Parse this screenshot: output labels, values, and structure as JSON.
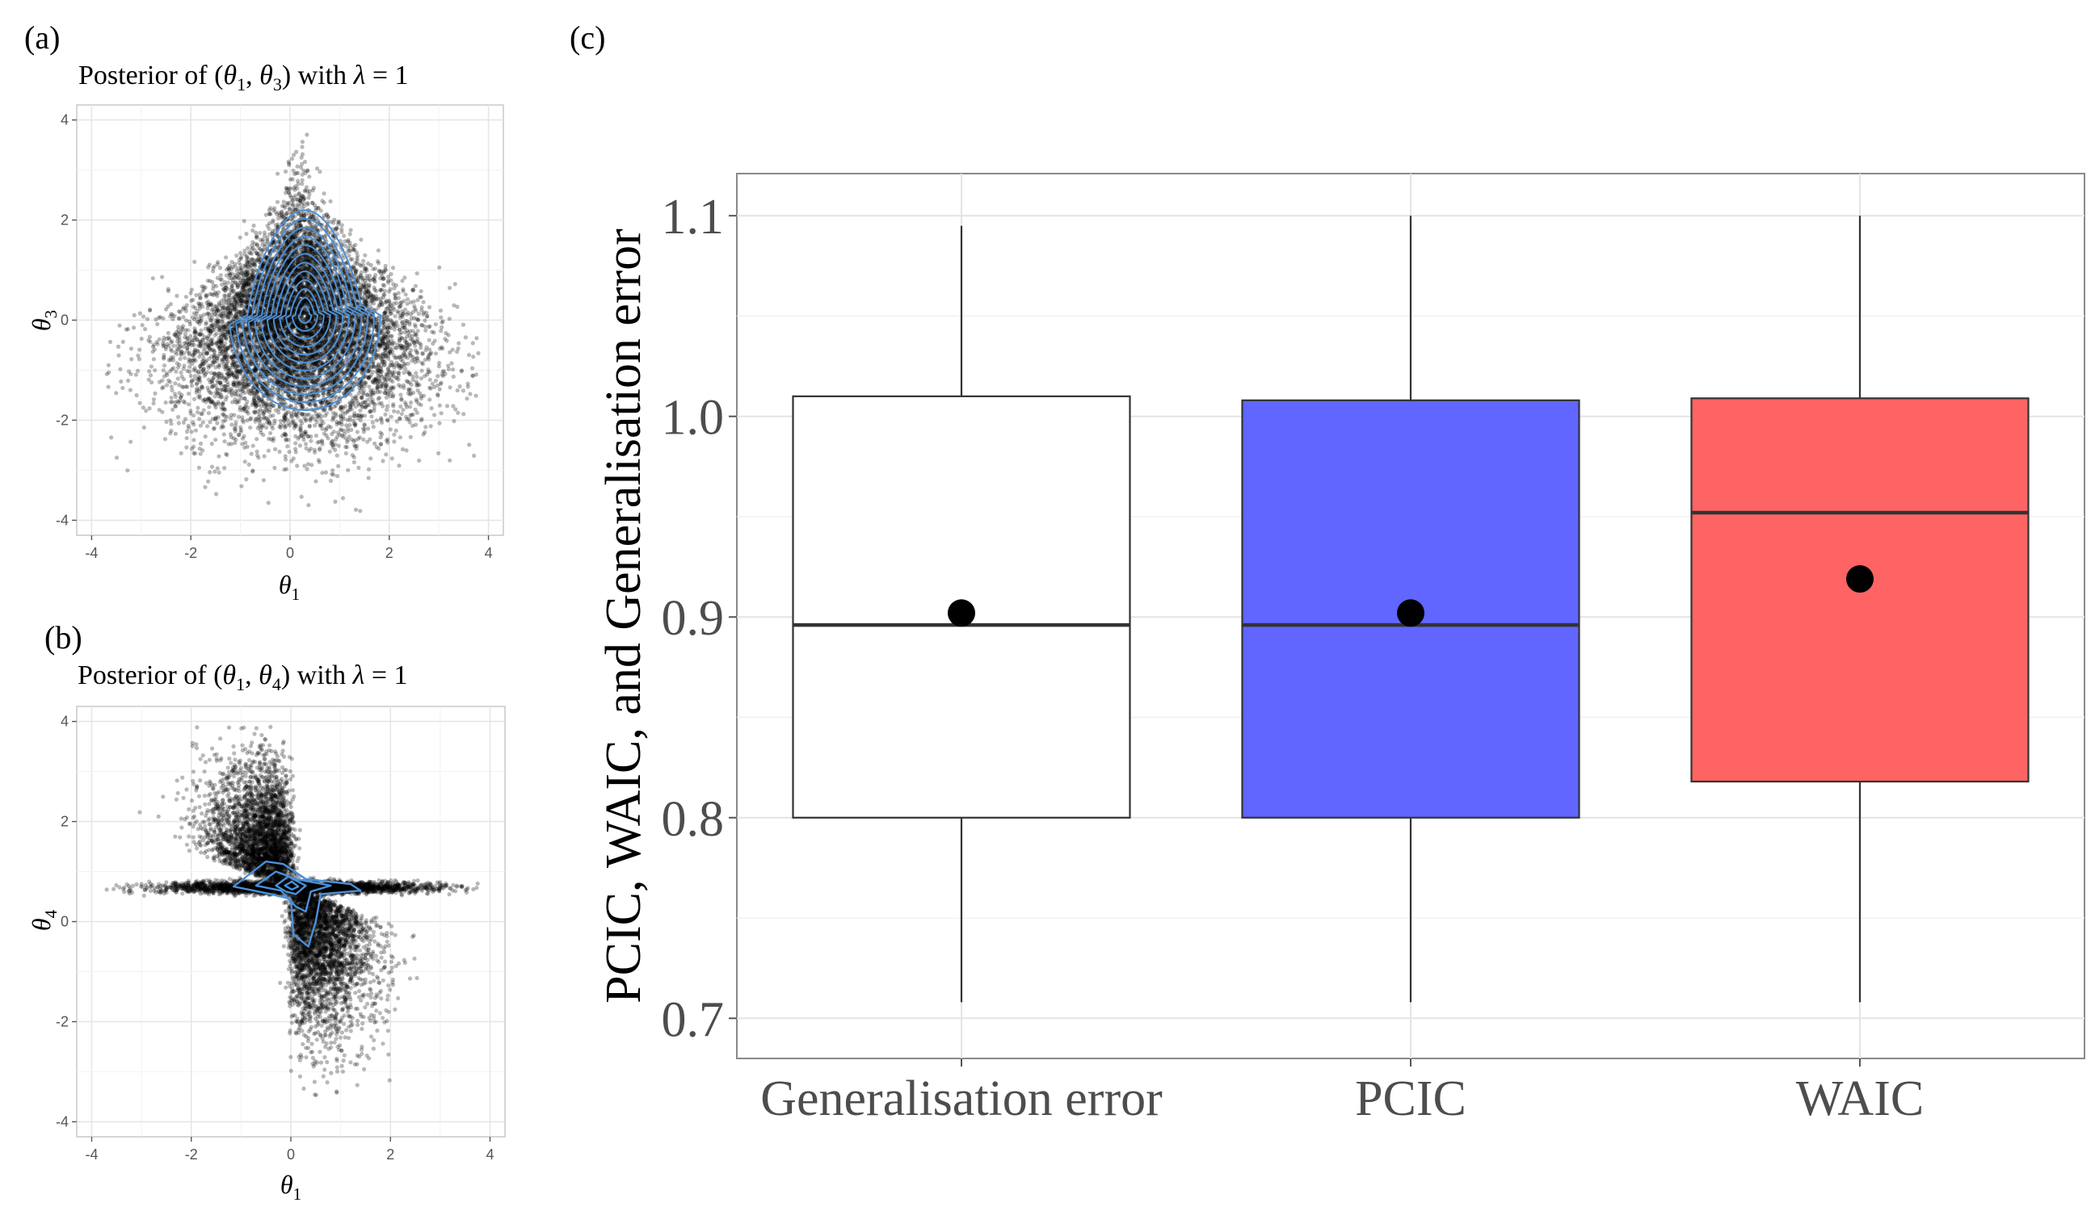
{
  "panels": {
    "a": {
      "label": "(a)",
      "title_pre": "Posterior of (",
      "title_var1": "θ",
      "title_sub1": "1",
      "title_mid": ", ",
      "title_var2": "θ",
      "title_sub2": "3",
      "title_post": ") with ",
      "title_lambda": "λ",
      "title_eq": " = 1",
      "xlabel_var": "θ",
      "xlabel_sub": "1",
      "ylabel_var": "θ",
      "ylabel_sub": "3"
    },
    "b": {
      "label": "(b)",
      "title_pre": "Posterior of (",
      "title_var1": "θ",
      "title_sub1": "1",
      "title_mid": ", ",
      "title_var2": "θ",
      "title_sub2": "4",
      "title_post": ") with ",
      "title_lambda": "λ",
      "title_eq": " = 1",
      "xlabel_var": "θ",
      "xlabel_sub": "1",
      "ylabel_var": "θ",
      "ylabel_sub": "4"
    },
    "c": {
      "label": "(c)"
    }
  },
  "chart_data": [
    {
      "id": "a",
      "type": "scatter",
      "xlim": [
        -4.3,
        4.3
      ],
      "ylim": [
        -4.3,
        4.3
      ],
      "x_ticks": [
        "-4",
        "-2",
        "0",
        "2",
        "4"
      ],
      "y_ticks": [
        "-4",
        "-2",
        "0",
        "2",
        "4"
      ],
      "grid": true,
      "point_color": "#000000",
      "contour_color": "#4a90d9",
      "n_points_approx": 9000,
      "distribution": "teardrop-shaped cloud centred near (0.2, 0); x spans about -3.6 to 3.3, y spans about -3.9 to 3.9, wider at the bottom",
      "contours": "nested density contours centred near (0.3, 0.2)"
    },
    {
      "id": "b",
      "type": "scatter",
      "xlim": [
        -4.3,
        4.3
      ],
      "ylim": [
        -4.3,
        4.3
      ],
      "x_ticks": [
        "-4",
        "-2",
        "0",
        "2",
        "4"
      ],
      "y_ticks": [
        "-4",
        "-2",
        "0",
        "2",
        "4"
      ],
      "grid": true,
      "point_color": "#000000",
      "contour_color": "#4a90d9",
      "n_points_approx": 9000,
      "distribution": "horizontal band at y≈0.7 spanning x≈-3.5 to 3.3, plus an upper-left wedge (x<0, y up to 3.5) and a lower-right wedge (x>0, y down to -3.2)",
      "contours": "small contours centred near (0, 0.7)"
    },
    {
      "id": "c",
      "type": "box",
      "categories": [
        "Generalisation error",
        "PCIC",
        "WAIC"
      ],
      "ylabel": "PCIC, WAIC, and Generalisation error",
      "ylim": [
        0.68,
        1.121
      ],
      "y_ticks": [
        0.7,
        0.8,
        0.9,
        1.0,
        1.1
      ],
      "y_tick_labels": [
        "0.7",
        "0.8",
        "0.9",
        "1.0",
        "1.1"
      ],
      "grid": true,
      "boxes": [
        {
          "category": "Generalisation error",
          "whisker_low": 0.708,
          "q1": 0.8,
          "median": 0.896,
          "q3": 1.01,
          "whisker_high": 1.095,
          "mean": 0.902,
          "fill": "#ffffff"
        },
        {
          "category": "PCIC",
          "whisker_low": 0.708,
          "q1": 0.8,
          "median": 0.896,
          "q3": 1.008,
          "whisker_high": 1.1,
          "mean": 0.902,
          "fill": "#6066ff"
        },
        {
          "category": "WAIC",
          "whisker_low": 0.708,
          "q1": 0.818,
          "median": 0.952,
          "q3": 1.009,
          "whisker_high": 1.1,
          "mean": 0.919,
          "fill": "#ff6464"
        }
      ]
    }
  ]
}
